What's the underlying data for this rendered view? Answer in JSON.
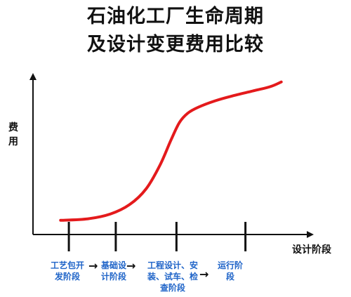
{
  "chart_data": {
    "type": "line",
    "title_lines": [
      "石油化工厂生命周期",
      "及设计变更费用比较"
    ],
    "ylabel_chars": [
      "费",
      "用"
    ],
    "xlabel": "设计阶段",
    "stages": [
      {
        "lines": [
          "工艺包开",
          "发阶段"
        ]
      },
      {
        "lines": [
          "基础设",
          "计阶段"
        ]
      },
      {
        "lines": [
          "工程设计、安",
          "装、试车、检",
          "查阶段"
        ]
      },
      {
        "lines": [
          "运行阶",
          "段"
        ]
      }
    ],
    "arrow_glyph": "→",
    "xlim": [
      0,
      10
    ],
    "ylim": [
      0,
      10
    ],
    "series": [
      {
        "color": "#e41a1c",
        "x": [
          1.0,
          2.0,
          2.8,
          3.5,
          4.1,
          4.6,
          5.0,
          5.3,
          5.6,
          6.0,
          6.6,
          7.2,
          7.9,
          8.6,
          9.0
        ],
        "y": [
          0.9,
          1.0,
          1.3,
          1.9,
          2.9,
          4.4,
          6.0,
          7.1,
          7.7,
          8.1,
          8.5,
          8.8,
          9.1,
          9.4,
          9.7
        ]
      }
    ],
    "stage_ticks_x": [
      1.3,
      3.0,
      5.2,
      7.7
    ],
    "axis_color": "#111111"
  }
}
